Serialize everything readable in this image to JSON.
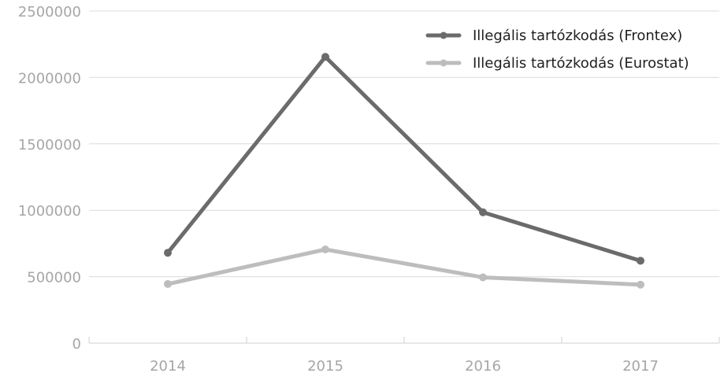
{
  "chart_data": {
    "type": "line",
    "categories": [
      "2014",
      "2015",
      "2016",
      "2017"
    ],
    "series": [
      {
        "name": "Illegális tartózkodás (Frontex)",
        "values": [
          680000,
          2155000,
          985000,
          620000
        ],
        "color": "#6b6b6b"
      },
      {
        "name": "Illegális tartózkodás (Eurostat)",
        "values": [
          445000,
          705000,
          495000,
          440000
        ],
        "color": "#bdbdbd"
      }
    ],
    "y_ticks": [
      "0",
      "500000",
      "1000000",
      "1500000",
      "2000000",
      "2500000"
    ],
    "ylim": [
      0,
      2500000
    ],
    "grid": true,
    "legend": "top-right",
    "title": "",
    "xlabel": "",
    "ylabel": ""
  }
}
